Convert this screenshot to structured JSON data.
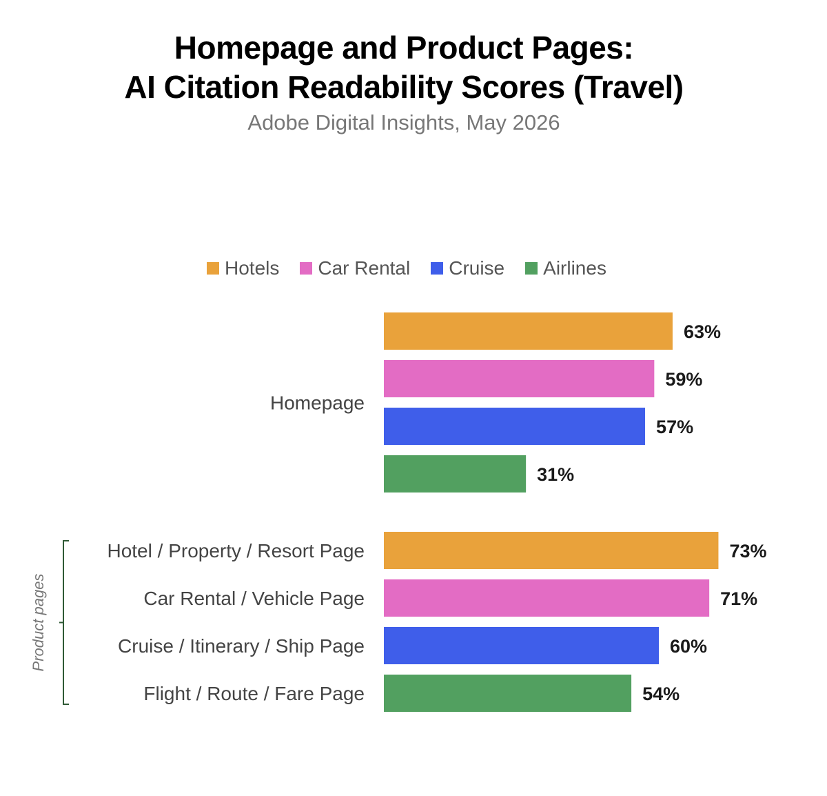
{
  "chart_data": {
    "type": "bar",
    "orientation": "horizontal",
    "title_lines": [
      "Homepage and Product Pages:",
      "AI Citation Readability Scores (Travel)"
    ],
    "subtitle": "Adobe Digital Insights, May 2026",
    "legend": {
      "placement": "top",
      "entries": [
        {
          "name": "Hotels",
          "color": "#E9A23B"
        },
        {
          "name": "Car Rental",
          "color": "#E36CC4"
        },
        {
          "name": "Cruise",
          "color": "#3F5EEA"
        },
        {
          "name": "Airlines",
          "color": "#52A060"
        }
      ]
    },
    "value_unit": "%",
    "xlim": [
      0,
      100
    ],
    "grid": false,
    "bracket_label": "Product pages",
    "groups": [
      {
        "label": "Homepage",
        "bars": [
          {
            "series": "Hotels",
            "label": "",
            "value": 63
          },
          {
            "series": "Car Rental",
            "label": "",
            "value": 59
          },
          {
            "series": "Cruise",
            "label": "",
            "value": 57
          },
          {
            "series": "Airlines",
            "label": "",
            "value": 31
          }
        ]
      },
      {
        "label": "",
        "bars": [
          {
            "series": "Hotels",
            "label": "Hotel / Property / Resort Page",
            "value": 73
          },
          {
            "series": "Car Rental",
            "label": "Car Rental / Vehicle Page",
            "value": 71
          },
          {
            "series": "Cruise",
            "label": "Cruise / Itinerary / Ship Page",
            "value": 60
          },
          {
            "series": "Airlines",
            "label": "Flight / Route / Fare Page",
            "value": 54
          }
        ]
      }
    ]
  }
}
